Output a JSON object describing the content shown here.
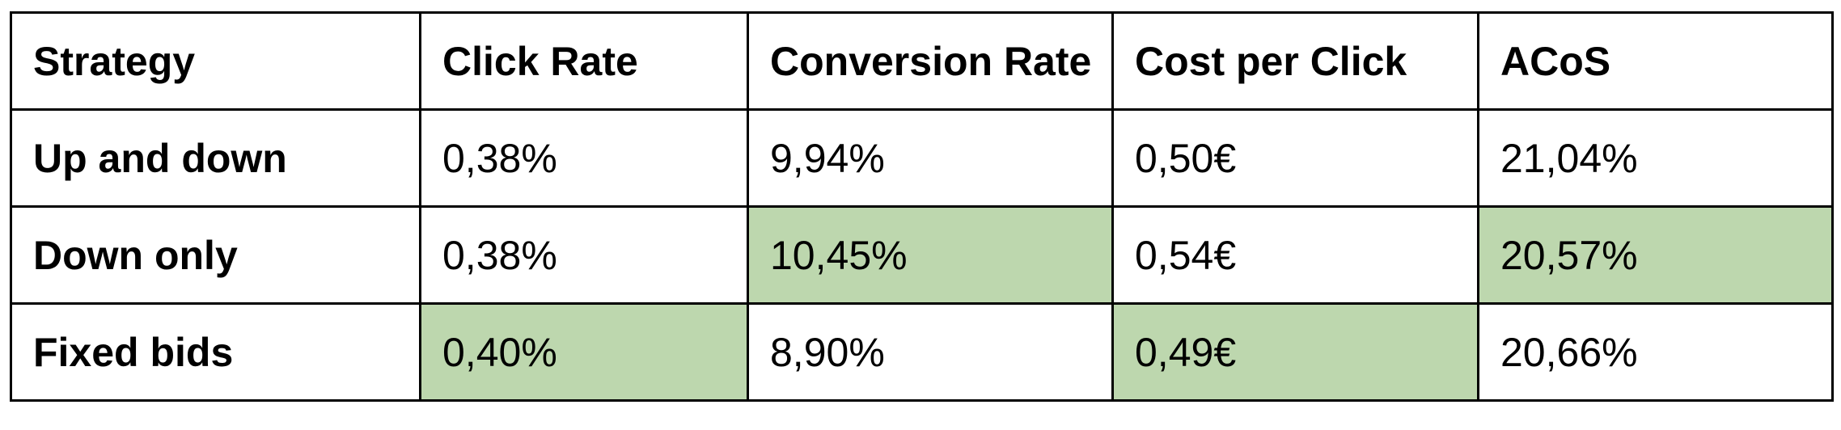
{
  "table": {
    "columns": [
      "Strategy",
      "Click Rate",
      "Conversion Rate",
      "Cost per Click",
      "ACoS"
    ],
    "highlight_color": "#bdd7ae",
    "rows": [
      {
        "cells": [
          "Up and down",
          "0,38%",
          "9,94%",
          "0,50€",
          "21,04%"
        ],
        "highlight": [
          false,
          false,
          false,
          false,
          false
        ]
      },
      {
        "cells": [
          "Down only",
          "0,38%",
          "10,45%",
          "0,54€",
          "20,57%"
        ],
        "highlight": [
          false,
          false,
          true,
          false,
          true
        ]
      },
      {
        "cells": [
          "Fixed bids",
          "0,40%",
          "8,90%",
          "0,49€",
          "20,66%"
        ],
        "highlight": [
          false,
          true,
          false,
          true,
          false
        ]
      }
    ]
  }
}
